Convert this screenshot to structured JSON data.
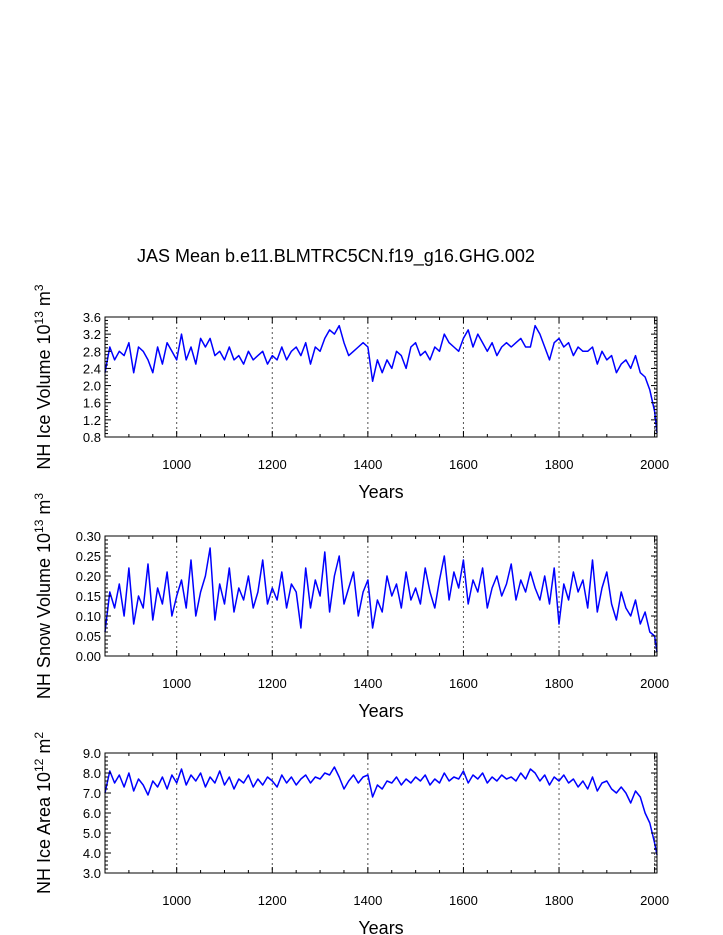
{
  "title": "JAS Mean b.e11.BLMTRC5CN.f19_g16.GHG.002",
  "colors": {
    "line": "#0000ff",
    "axis": "#000000",
    "grid": "#555555"
  },
  "chart_data": [
    {
      "type": "line",
      "id": "ice-volume",
      "ylabel_main": "NH Ice Volume 10",
      "ylabel_exp": "13",
      "ylabel_unit": " m",
      "ylabel_unit_exp": "3",
      "xlabel": "Years",
      "xlim": [
        850,
        2005
      ],
      "ylim": [
        0.8,
        3.6
      ],
      "x_ticks": [
        1000,
        1200,
        1400,
        1600,
        1800,
        2000
      ],
      "y_ticks": [
        "0.8",
        "1.2",
        "1.6",
        "2.0",
        "2.4",
        "2.8",
        "3.2",
        "3.6"
      ],
      "grid_x": true,
      "series": [
        {
          "x": [
            850,
            860,
            870,
            880,
            890,
            900,
            910,
            920,
            930,
            940,
            950,
            960,
            970,
            980,
            990,
            1000,
            1010,
            1020,
            1030,
            1040,
            1050,
            1060,
            1070,
            1080,
            1090,
            1100,
            1110,
            1120,
            1130,
            1140,
            1150,
            1160,
            1170,
            1180,
            1190,
            1200,
            1210,
            1220,
            1230,
            1240,
            1250,
            1260,
            1270,
            1280,
            1290,
            1300,
            1310,
            1320,
            1330,
            1340,
            1350,
            1360,
            1370,
            1380,
            1390,
            1400,
            1410,
            1420,
            1430,
            1440,
            1450,
            1460,
            1470,
            1480,
            1490,
            1500,
            1510,
            1520,
            1530,
            1540,
            1550,
            1560,
            1570,
            1580,
            1590,
            1600,
            1610,
            1620,
            1630,
            1640,
            1650,
            1660,
            1670,
            1680,
            1690,
            1700,
            1710,
            1720,
            1730,
            1740,
            1750,
            1760,
            1770,
            1780,
            1790,
            1800,
            1810,
            1820,
            1830,
            1840,
            1850,
            1860,
            1870,
            1880,
            1890,
            1900,
            1910,
            1920,
            1930,
            1940,
            1950,
            1960,
            1970,
            1980,
            1990,
            2000,
            2005
          ],
          "y": [
            2.3,
            2.9,
            2.6,
            2.8,
            2.7,
            3.0,
            2.3,
            2.9,
            2.8,
            2.6,
            2.3,
            2.9,
            2.5,
            3.0,
            2.8,
            2.6,
            3.2,
            2.6,
            2.9,
            2.5,
            3.1,
            2.9,
            3.1,
            2.7,
            2.8,
            2.6,
            2.9,
            2.6,
            2.7,
            2.5,
            2.8,
            2.6,
            2.7,
            2.8,
            2.5,
            2.7,
            2.6,
            2.9,
            2.6,
            2.8,
            2.9,
            2.7,
            3.0,
            2.5,
            2.9,
            2.8,
            3.1,
            3.3,
            3.2,
            3.4,
            3.0,
            2.7,
            2.8,
            2.9,
            3.0,
            2.9,
            2.1,
            2.6,
            2.3,
            2.6,
            2.4,
            2.8,
            2.7,
            2.4,
            2.9,
            3.0,
            2.7,
            2.8,
            2.6,
            2.9,
            2.8,
            3.2,
            3.0,
            2.9,
            2.8,
            3.1,
            3.3,
            2.9,
            3.2,
            3.0,
            2.8,
            3.0,
            2.7,
            2.9,
            3.0,
            2.9,
            3.0,
            3.1,
            2.9,
            2.9,
            3.4,
            3.2,
            2.9,
            2.6,
            3.0,
            3.1,
            2.9,
            3.0,
            2.7,
            2.9,
            2.8,
            2.8,
            2.9,
            2.5,
            2.8,
            2.6,
            2.7,
            2.3,
            2.5,
            2.6,
            2.4,
            2.7,
            2.3,
            2.2,
            1.9,
            1.4,
            0.9
          ]
        }
      ]
    },
    {
      "type": "line",
      "id": "snow-volume",
      "ylabel_main": "NH Snow Volume 10",
      "ylabel_exp": "13",
      "ylabel_unit": " m",
      "ylabel_unit_exp": "3",
      "xlabel": "Years",
      "xlim": [
        850,
        2005
      ],
      "ylim": [
        0.0,
        0.3
      ],
      "x_ticks": [
        1000,
        1200,
        1400,
        1600,
        1800,
        2000
      ],
      "y_ticks": [
        "0.00",
        "0.05",
        "0.10",
        "0.15",
        "0.20",
        "0.25",
        "0.30"
      ],
      "grid_x": true,
      "series": [
        {
          "x": [
            850,
            860,
            870,
            880,
            890,
            900,
            910,
            920,
            930,
            940,
            950,
            960,
            970,
            980,
            990,
            1000,
            1010,
            1020,
            1030,
            1040,
            1050,
            1060,
            1070,
            1080,
            1090,
            1100,
            1110,
            1120,
            1130,
            1140,
            1150,
            1160,
            1170,
            1180,
            1190,
            1200,
            1210,
            1220,
            1230,
            1240,
            1250,
            1260,
            1270,
            1280,
            1290,
            1300,
            1310,
            1320,
            1330,
            1340,
            1350,
            1360,
            1370,
            1380,
            1390,
            1400,
            1410,
            1420,
            1430,
            1440,
            1450,
            1460,
            1470,
            1480,
            1490,
            1500,
            1510,
            1520,
            1530,
            1540,
            1550,
            1560,
            1570,
            1580,
            1590,
            1600,
            1610,
            1620,
            1630,
            1640,
            1650,
            1660,
            1670,
            1680,
            1690,
            1700,
            1710,
            1720,
            1730,
            1740,
            1750,
            1760,
            1770,
            1780,
            1790,
            1800,
            1810,
            1820,
            1830,
            1840,
            1850,
            1860,
            1870,
            1880,
            1890,
            1900,
            1910,
            1920,
            1930,
            1940,
            1950,
            1960,
            1970,
            1980,
            1990,
            2000,
            2005
          ],
          "y": [
            0.06,
            0.16,
            0.12,
            0.18,
            0.1,
            0.22,
            0.08,
            0.15,
            0.12,
            0.23,
            0.09,
            0.17,
            0.13,
            0.21,
            0.1,
            0.15,
            0.19,
            0.12,
            0.24,
            0.1,
            0.16,
            0.2,
            0.27,
            0.09,
            0.18,
            0.13,
            0.22,
            0.11,
            0.17,
            0.14,
            0.2,
            0.12,
            0.16,
            0.24,
            0.13,
            0.17,
            0.14,
            0.21,
            0.12,
            0.18,
            0.16,
            0.07,
            0.22,
            0.12,
            0.19,
            0.15,
            0.26,
            0.11,
            0.2,
            0.25,
            0.13,
            0.17,
            0.21,
            0.1,
            0.16,
            0.19,
            0.07,
            0.14,
            0.11,
            0.2,
            0.15,
            0.18,
            0.12,
            0.21,
            0.14,
            0.17,
            0.13,
            0.22,
            0.16,
            0.12,
            0.19,
            0.25,
            0.14,
            0.21,
            0.17,
            0.24,
            0.13,
            0.19,
            0.16,
            0.22,
            0.12,
            0.17,
            0.2,
            0.15,
            0.18,
            0.23,
            0.14,
            0.19,
            0.16,
            0.21,
            0.17,
            0.14,
            0.2,
            0.13,
            0.22,
            0.08,
            0.18,
            0.14,
            0.21,
            0.16,
            0.19,
            0.12,
            0.24,
            0.11,
            0.17,
            0.21,
            0.13,
            0.09,
            0.16,
            0.12,
            0.1,
            0.14,
            0.08,
            0.11,
            0.06,
            0.05,
            0.01
          ]
        }
      ]
    },
    {
      "type": "line",
      "id": "ice-area",
      "ylabel_main": "NH Ice Area 10",
      "ylabel_exp": "12",
      "ylabel_unit": " m",
      "ylabel_unit_exp": "2",
      "xlabel": "Years",
      "xlim": [
        850,
        2005
      ],
      "ylim": [
        3.0,
        9.0
      ],
      "x_ticks": [
        1000,
        1200,
        1400,
        1600,
        1800,
        2000
      ],
      "y_ticks": [
        "3.0",
        "4.0",
        "5.0",
        "6.0",
        "7.0",
        "8.0",
        "9.0"
      ],
      "grid_x": true,
      "series": [
        {
          "x": [
            850,
            860,
            870,
            880,
            890,
            900,
            910,
            920,
            930,
            940,
            950,
            960,
            970,
            980,
            990,
            1000,
            1010,
            1020,
            1030,
            1040,
            1050,
            1060,
            1070,
            1080,
            1090,
            1100,
            1110,
            1120,
            1130,
            1140,
            1150,
            1160,
            1170,
            1180,
            1190,
            1200,
            1210,
            1220,
            1230,
            1240,
            1250,
            1260,
            1270,
            1280,
            1290,
            1300,
            1310,
            1320,
            1330,
            1340,
            1350,
            1360,
            1370,
            1380,
            1390,
            1400,
            1410,
            1420,
            1430,
            1440,
            1450,
            1460,
            1470,
            1480,
            1490,
            1500,
            1510,
            1520,
            1530,
            1540,
            1550,
            1560,
            1570,
            1580,
            1590,
            1600,
            1610,
            1620,
            1630,
            1640,
            1650,
            1660,
            1670,
            1680,
            1690,
            1700,
            1710,
            1720,
            1730,
            1740,
            1750,
            1760,
            1770,
            1780,
            1790,
            1800,
            1810,
            1820,
            1830,
            1840,
            1850,
            1860,
            1870,
            1880,
            1890,
            1900,
            1910,
            1920,
            1930,
            1940,
            1950,
            1960,
            1970,
            1980,
            1990,
            2000,
            2005
          ],
          "y": [
            7.0,
            8.1,
            7.5,
            7.9,
            7.3,
            8.0,
            7.1,
            7.7,
            7.4,
            6.9,
            7.6,
            7.3,
            7.8,
            7.2,
            7.9,
            7.5,
            8.2,
            7.4,
            7.9,
            7.6,
            8.0,
            7.3,
            7.8,
            7.5,
            8.1,
            7.4,
            7.8,
            7.2,
            7.7,
            7.5,
            7.9,
            7.3,
            7.7,
            7.4,
            7.8,
            7.6,
            7.3,
            7.9,
            7.5,
            7.8,
            7.4,
            7.7,
            7.9,
            7.5,
            7.8,
            7.7,
            8.0,
            7.9,
            8.3,
            7.8,
            7.2,
            7.6,
            7.9,
            7.5,
            7.8,
            7.9,
            6.8,
            7.4,
            7.2,
            7.6,
            7.5,
            7.8,
            7.4,
            7.7,
            7.5,
            7.8,
            7.6,
            7.9,
            7.4,
            7.7,
            7.5,
            8.0,
            7.6,
            7.8,
            7.7,
            8.1,
            7.5,
            7.9,
            7.7,
            8.0,
            7.5,
            7.8,
            7.6,
            7.9,
            7.7,
            7.8,
            7.6,
            8.0,
            7.7,
            8.2,
            8.0,
            7.6,
            7.9,
            7.4,
            7.8,
            7.6,
            7.9,
            7.5,
            7.7,
            7.3,
            7.6,
            7.2,
            7.8,
            7.1,
            7.5,
            7.6,
            7.2,
            7.0,
            7.3,
            7.0,
            6.5,
            7.1,
            6.8,
            6.0,
            5.5,
            4.5,
            3.9
          ]
        }
      ]
    }
  ]
}
